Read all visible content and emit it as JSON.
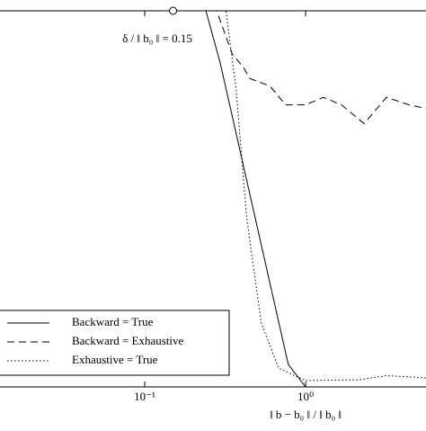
{
  "chart_data": {
    "type": "line",
    "xlabel": "‖ b − b₀ ‖ / ‖ b₀ ‖",
    "annotation": "δ / ‖ b₀ ‖ = 0.15",
    "marker_x": 0.15,
    "marker_y": 1,
    "xscale": "log",
    "xlim": [
      0.0126,
      5.6
    ],
    "ylim": [
      0,
      1
    ],
    "xticks": [
      {
        "value": 0.1,
        "label": "10⁻¹"
      },
      {
        "value": 1,
        "label": "10⁰"
      }
    ],
    "legend": "lower left",
    "series": [
      {
        "name": "Backward = True",
        "color": "#000000",
        "dash": "solid",
        "x": [
          0.0126,
          0.15,
          0.24,
          0.295,
          0.78,
          1,
          5.6
        ],
        "values": [
          1,
          1,
          1,
          0.86,
          0.06,
          0,
          0
        ]
      },
      {
        "name": "Backward = Exhaustive",
        "color": "#000000",
        "dash": "dashed",
        "x": [
          0.0126,
          0.28,
          0.35,
          0.41,
          0.45,
          0.6,
          0.75,
          1,
          1.29,
          1.67,
          2.31,
          3.18,
          4.4,
          5.6
        ],
        "values": [
          1,
          1,
          0.885,
          0.85,
          0.82,
          0.8,
          0.75,
          0.75,
          0.77,
          0.75,
          0.7,
          0.77,
          0.75,
          0.74
        ]
      },
      {
        "name": "Exhaustive = True",
        "color": "#000000",
        "dash": "dotted",
        "x": [
          0.0126,
          0.32,
          0.37,
          0.43,
          0.53,
          0.68,
          1,
          2.16,
          3.18,
          5.6
        ],
        "values": [
          1,
          1,
          0.79,
          0.45,
          0.17,
          0.05,
          0.017,
          0.019,
          0.03,
          0.024
        ]
      }
    ]
  }
}
